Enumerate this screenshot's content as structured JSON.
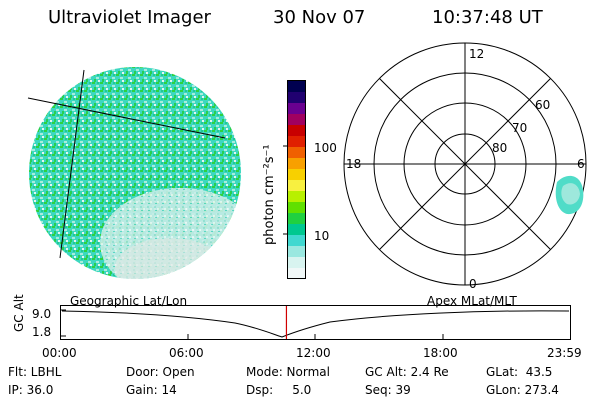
{
  "header": {
    "instrument": "Ultraviolet Imager",
    "date": "30 Nov 07",
    "time": "10:37:48 UT"
  },
  "colorbar": {
    "label": "photon cm⁻²s⁻¹",
    "ticks": [
      "100",
      "10"
    ],
    "colors": [
      "#000050",
      "#200070",
      "#6a0090",
      "#a00060",
      "#c80000",
      "#e02000",
      "#f06000",
      "#f8a000",
      "#f8d000",
      "#f8f040",
      "#b8f000",
      "#60e000",
      "#20d040",
      "#00c890",
      "#40d8d0",
      "#9ae8e0",
      "#d8f4f0",
      "#f0f8f8"
    ]
  },
  "polar_plot": {
    "mlt_labels": [
      "12",
      "18",
      "6",
      "0"
    ],
    "lat_labels": [
      "60",
      "70",
      "80"
    ]
  },
  "gc_alt_panel": {
    "axis_label": "GC Alt",
    "y_ticks": [
      "9.0",
      "1.8"
    ],
    "left_caption": "Geographic Lat/Lon",
    "right_caption": "Apex MLat/MLT",
    "x_ticks": [
      "00:00",
      "06:00",
      "12:00",
      "18:00",
      "23:59"
    ],
    "current_time_fraction": 0.4429,
    "marker_color": "#d00000"
  },
  "status": {
    "flt": "Flt: LBHL",
    "door": "Door: Open",
    "mode": "Mode: Normal",
    "gc_alt": "GC Alt: 2.4 Re",
    "glat": "GLat:  43.5",
    "ip": "IP: 36.0",
    "gain": "Gain: 14",
    "dsp": "Dsp:     5.0",
    "seq": "Seq: 39",
    "glon": "GLon: 273.4"
  }
}
